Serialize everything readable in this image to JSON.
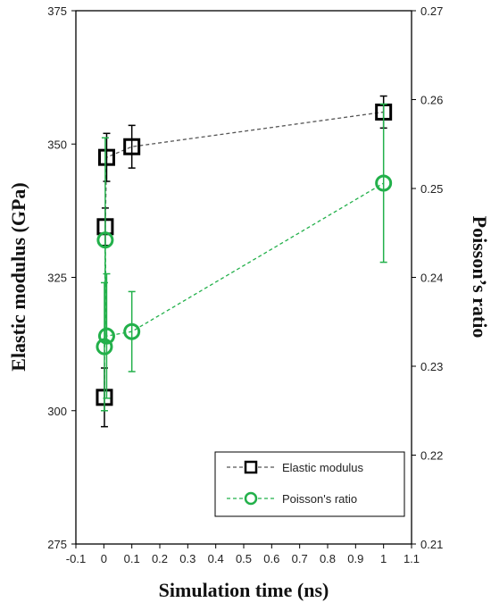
{
  "chart_data": {
    "type": "scatter",
    "xlabel": "Simulation time (ns)",
    "ylabel_left": "Elastic modulus (GPa)",
    "ylabel_right": "Poisson’s ratio",
    "xlim": [
      -0.1,
      1.1
    ],
    "ylim_left": [
      275,
      375
    ],
    "ylim_right": [
      0.21,
      0.27
    ],
    "x_ticks": [
      "-0.1",
      "0",
      "0.1",
      "0.2",
      "0.3",
      "0.4",
      "0.5",
      "0.6",
      "0.7",
      "0.8",
      "0.9",
      "1",
      "1.1"
    ],
    "y_ticks_left": [
      "275",
      "300",
      "325",
      "350",
      "375"
    ],
    "y_ticks_right": [
      "0.21",
      "0.22",
      "0.23",
      "0.24",
      "0.25",
      "0.26",
      "0.27"
    ],
    "grid": false,
    "legend_position": "bottom-right",
    "series": [
      {
        "name": "Elastic modulus",
        "axis": "left",
        "marker": "square",
        "color": "#000000",
        "line_color": "#555555",
        "points": [
          {
            "x": 0.002,
            "y": 302.5,
            "err": 5.5
          },
          {
            "x": 0.005,
            "y": 334.5,
            "err": 3.5
          },
          {
            "x": 0.01,
            "y": 347.5,
            "err": 4.5
          },
          {
            "x": 0.1,
            "y": 349.5,
            "err": 4.0
          },
          {
            "x": 1.0,
            "y": 356.0,
            "err": 3.0
          }
        ]
      },
      {
        "name": "Poisson's ratio",
        "axis": "right",
        "marker": "circle",
        "color": "#22b04a",
        "line_color": "#22b04a",
        "points": [
          {
            "x": 0.002,
            "y": 0.2322,
            "err": 0.0072
          },
          {
            "x": 0.005,
            "y": 0.2442,
            "err": 0.0115
          },
          {
            "x": 0.01,
            "y": 0.2334,
            "err": 0.007
          },
          {
            "x": 0.1,
            "y": 0.2339,
            "err": 0.0045
          },
          {
            "x": 1.0,
            "y": 0.2506,
            "err": 0.0089
          }
        ]
      }
    ]
  }
}
